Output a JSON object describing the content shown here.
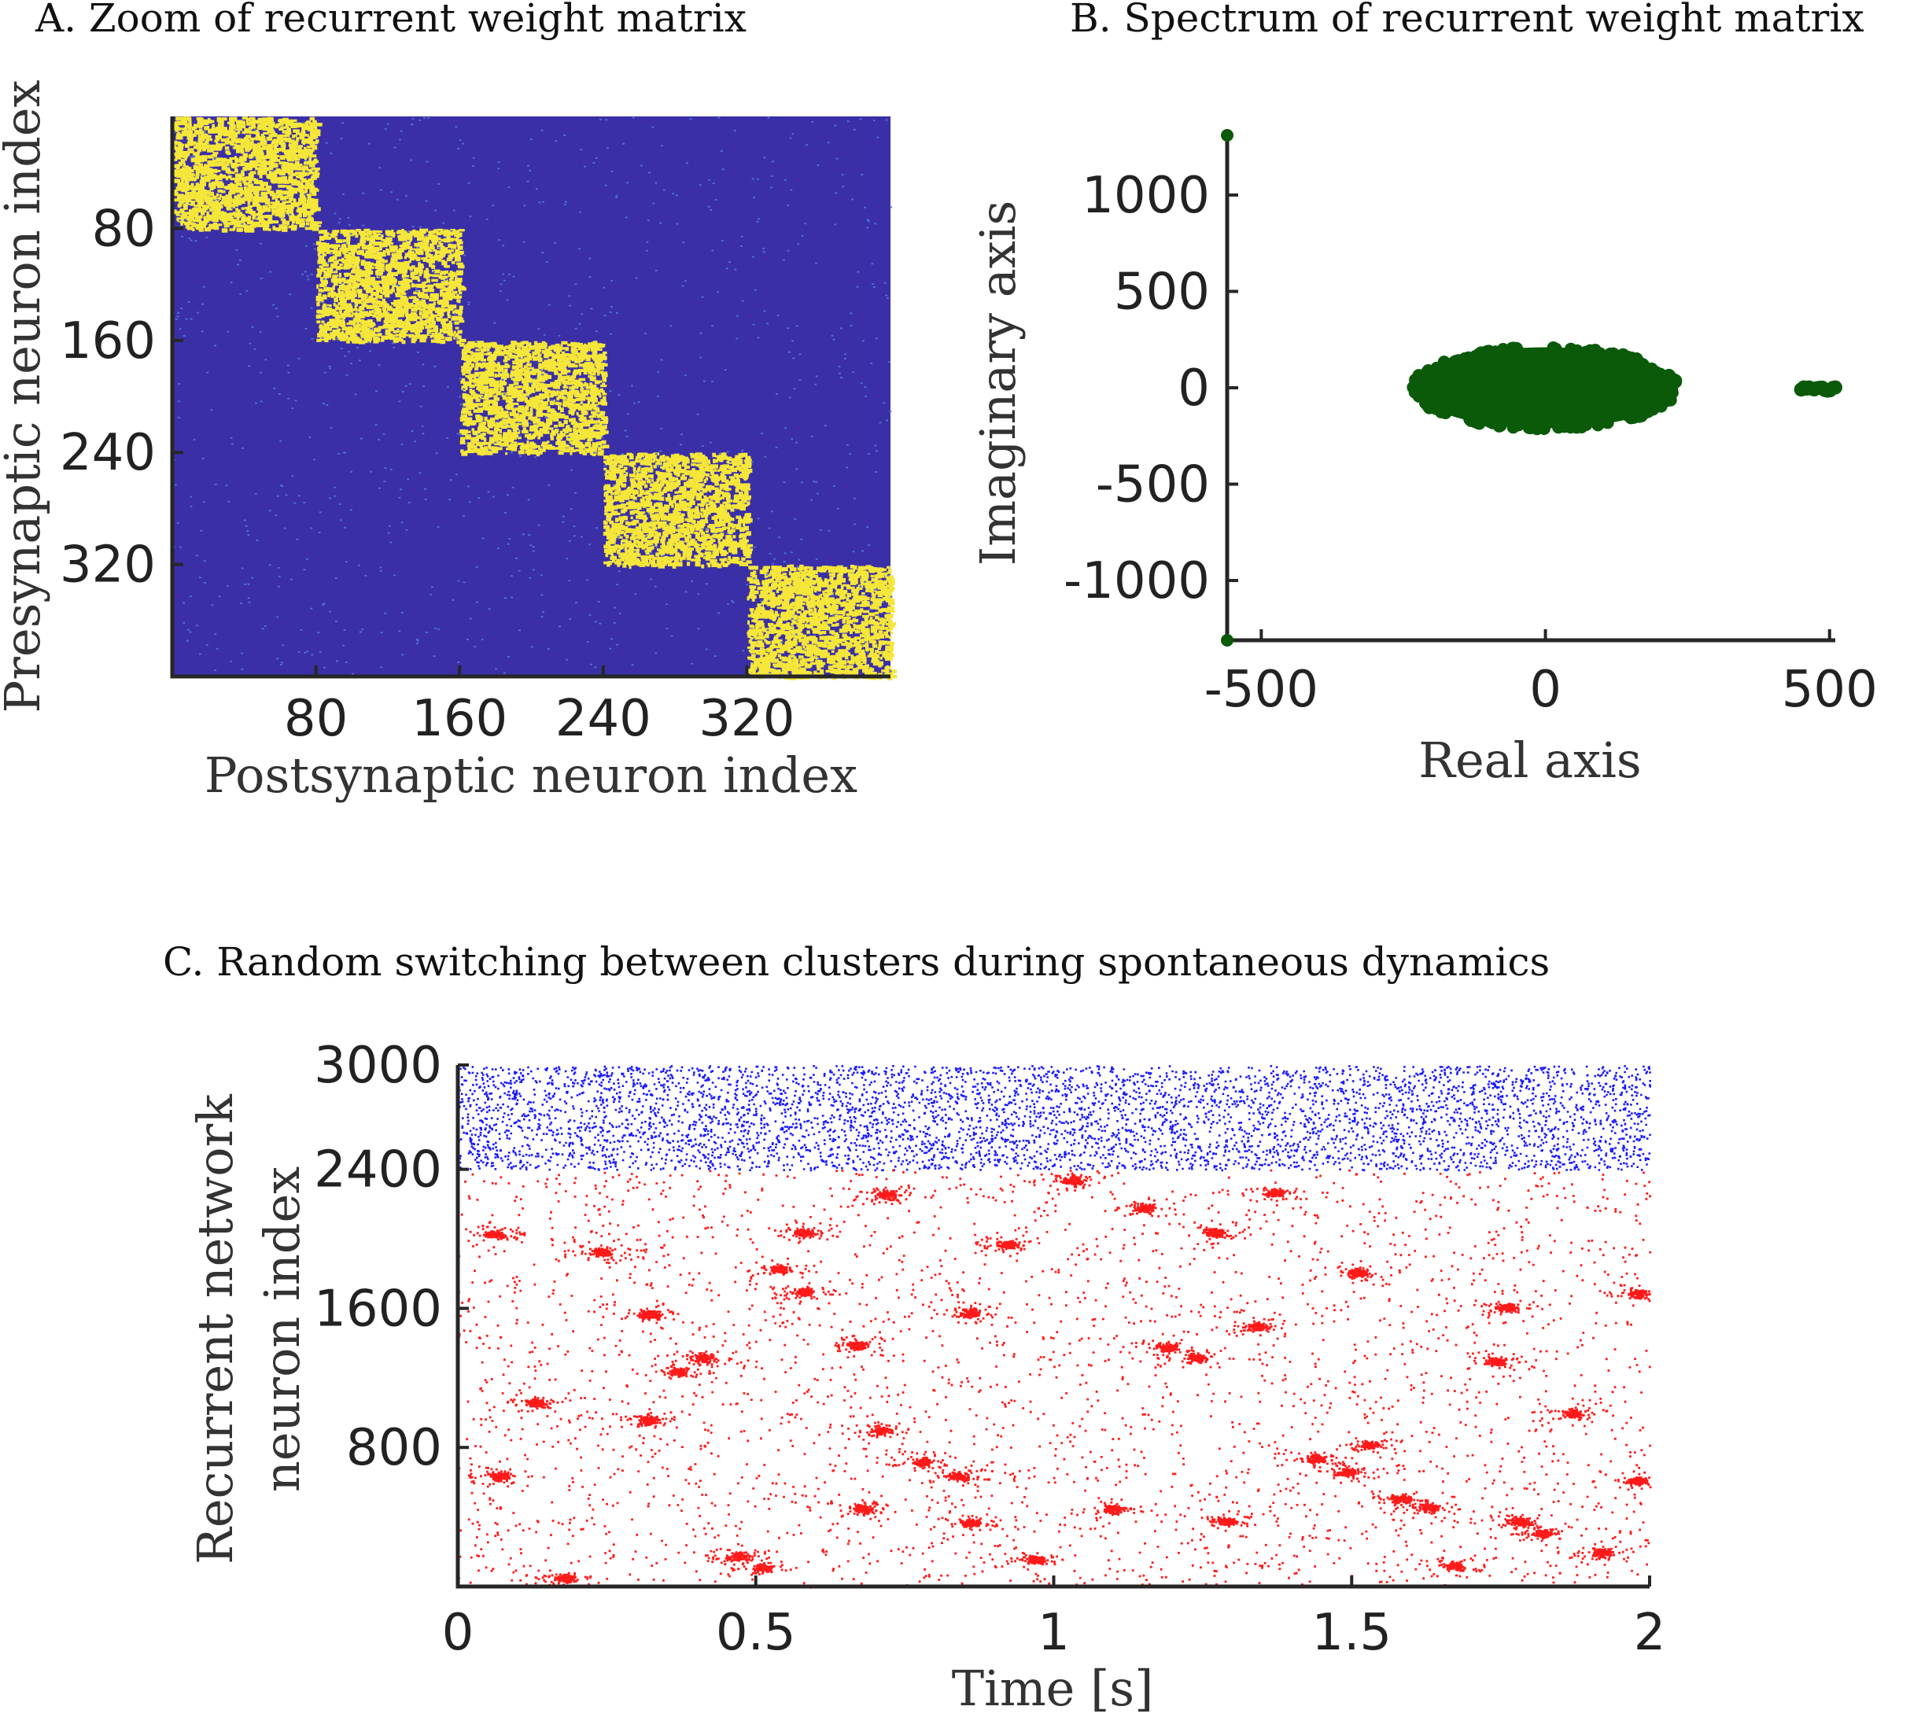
{
  "panel_a": {
    "title": "A. Zoom of recurrent weight matrix",
    "xlabel": "Postsynaptic neuron index",
    "ylabel": "Presynaptic neuron index"
  },
  "panel_b": {
    "title": "B. Spectrum of recurrent weight matrix",
    "xlabel": "Real axis",
    "ylabel": "Imaginary axis"
  },
  "panel_c": {
    "title": "C. Random switching between clusters during spontaneous dynamics",
    "xlabel": "Time [s]",
    "ylabel_line1": "Recurrent network",
    "ylabel_line2": "neuron index"
  },
  "colors": {
    "matrix_background": "#3a2fa6",
    "matrix_strong": "#f5e63a",
    "eigen_points": "#0a5a0a",
    "excitatory_spikes": "#ff1a1a",
    "inhibitory_spikes": "#1a1aff",
    "axis": "#262626"
  },
  "chart_data": [
    {
      "type": "heatmap",
      "title": "A. Zoom of recurrent weight matrix",
      "xlabel": "Postsynaptic neuron index",
      "ylabel": "Presynaptic neuron index",
      "xlim": [
        0,
        400
      ],
      "ylim": [
        400,
        0
      ],
      "xticks": [
        80,
        160,
        240,
        320
      ],
      "yticks": [
        80,
        160,
        240,
        320
      ],
      "clusters": [
        {
          "start": 0,
          "end": 80
        },
        {
          "start": 80,
          "end": 160
        },
        {
          "start": 160,
          "end": 240
        },
        {
          "start": 240,
          "end": 320
        },
        {
          "start": 320,
          "end": 400
        }
      ]
    },
    {
      "type": "scatter",
      "title": "B. Spectrum of recurrent weight matrix",
      "xlabel": "Real axis",
      "ylabel": "Imaginary axis",
      "xlim": [
        -560,
        510
      ],
      "ylim": [
        -1310,
        1310
      ],
      "xticks": [
        -500,
        0,
        500
      ],
      "yticks": [
        1000,
        500,
        0,
        -500,
        -1000
      ],
      "bulk": {
        "center_real": 0,
        "radius_real": 230,
        "radius_imag": 210
      },
      "outlier_cluster": {
        "real_min": 450,
        "real_max": 510,
        "imag_min": -15,
        "imag_max": 15
      },
      "outliers": [
        {
          "real": -560,
          "imag": 1310
        },
        {
          "real": -560,
          "imag": -1310
        }
      ]
    },
    {
      "type": "scatter",
      "title": "C. Random switching between clusters during spontaneous dynamics",
      "xlabel": "Time [s]",
      "ylabel": "Recurrent network neuron index",
      "xlim": [
        0,
        2
      ],
      "ylim": [
        0,
        3000
      ],
      "xticks": [
        "0",
        "0.5",
        "1",
        "1.5",
        "2"
      ],
      "yticks": [
        800,
        1600,
        2400,
        3000
      ],
      "series": [
        {
          "population": "excitatory",
          "neuron_range": [
            0,
            2400
          ]
        },
        {
          "population": "inhibitory",
          "neuron_range": [
            2400,
            3000
          ]
        }
      ],
      "cluster_bursts": [
        {
          "t": 0.06,
          "n": 2030
        },
        {
          "t": 0.24,
          "n": 1930
        },
        {
          "t": 0.32,
          "n": 1570
        },
        {
          "t": 0.41,
          "n": 1320
        },
        {
          "t": 0.37,
          "n": 1240
        },
        {
          "t": 0.13,
          "n": 1060
        },
        {
          "t": 0.32,
          "n": 960
        },
        {
          "t": 0.07,
          "n": 640
        },
        {
          "t": 0.18,
          "n": 50
        },
        {
          "t": 0.47,
          "n": 180
        },
        {
          "t": 0.51,
          "n": 110
        },
        {
          "t": 0.58,
          "n": 2040
        },
        {
          "t": 0.58,
          "n": 1700
        },
        {
          "t": 0.54,
          "n": 1830
        },
        {
          "t": 0.67,
          "n": 1390
        },
        {
          "t": 0.71,
          "n": 900
        },
        {
          "t": 0.72,
          "n": 2260
        },
        {
          "t": 0.78,
          "n": 720
        },
        {
          "t": 0.84,
          "n": 640
        },
        {
          "t": 0.86,
          "n": 1580
        },
        {
          "t": 0.92,
          "n": 1970
        },
        {
          "t": 0.68,
          "n": 450
        },
        {
          "t": 0.86,
          "n": 370
        },
        {
          "t": 0.97,
          "n": 160
        },
        {
          "t": 1.03,
          "n": 2340
        },
        {
          "t": 1.1,
          "n": 450
        },
        {
          "t": 1.15,
          "n": 2180
        },
        {
          "t": 1.19,
          "n": 1380
        },
        {
          "t": 1.24,
          "n": 1320
        },
        {
          "t": 1.27,
          "n": 2040
        },
        {
          "t": 1.34,
          "n": 1500
        },
        {
          "t": 1.29,
          "n": 380
        },
        {
          "t": 1.37,
          "n": 2270
        },
        {
          "t": 1.44,
          "n": 740
        },
        {
          "t": 1.49,
          "n": 660
        },
        {
          "t": 1.51,
          "n": 1810
        },
        {
          "t": 1.53,
          "n": 820
        },
        {
          "t": 1.58,
          "n": 510
        },
        {
          "t": 1.63,
          "n": 460
        },
        {
          "t": 1.67,
          "n": 120
        },
        {
          "t": 1.74,
          "n": 1300
        },
        {
          "t": 1.76,
          "n": 1610
        },
        {
          "t": 1.78,
          "n": 380
        },
        {
          "t": 1.82,
          "n": 310
        },
        {
          "t": 1.87,
          "n": 1000
        },
        {
          "t": 1.92,
          "n": 200
        },
        {
          "t": 1.98,
          "n": 1690
        },
        {
          "t": 1.98,
          "n": 610
        }
      ]
    }
  ]
}
